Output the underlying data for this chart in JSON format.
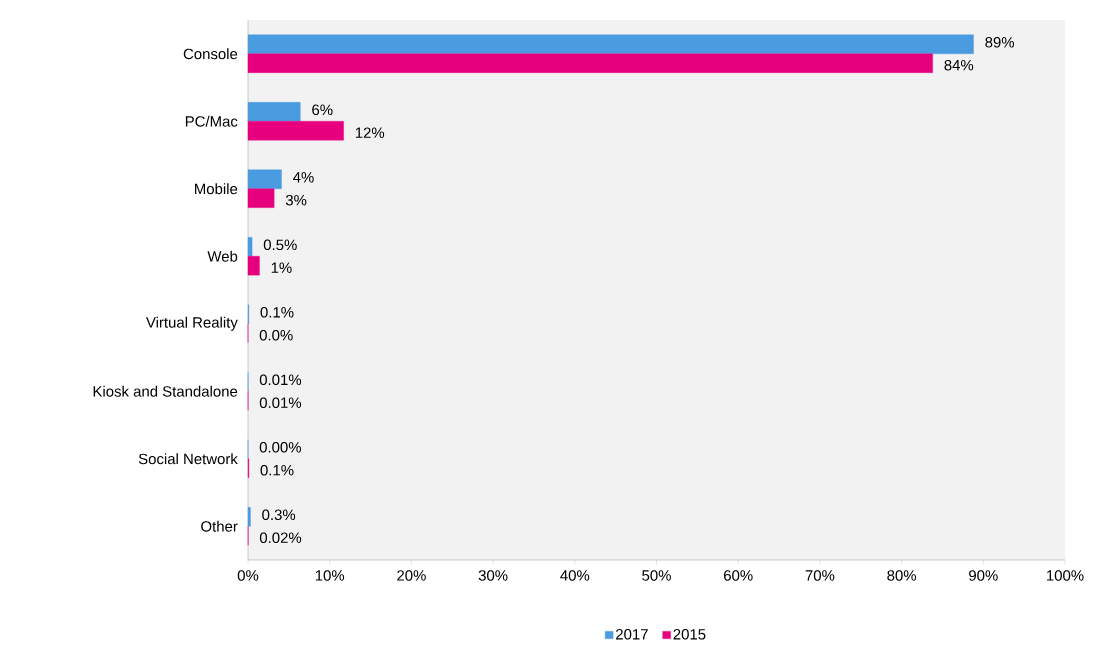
{
  "chart_data": {
    "type": "bar",
    "orientation": "horizontal",
    "categories": [
      "Console",
      "PC/Mac",
      "Mobile",
      "Web",
      "Virtual Reality",
      "Kiosk and Standalone",
      "Social Network",
      "Other"
    ],
    "series": [
      {
        "name": "2017",
        "color": "#4a9be0",
        "values": [
          88.8,
          6.4,
          4.1,
          0.5,
          0.1,
          0.01,
          0.0,
          0.3
        ],
        "value_labels": [
          "89%",
          "6%",
          "4%",
          "0.5%",
          "0.1%",
          "0.01%",
          "0.00%",
          "0.3%"
        ]
      },
      {
        "name": "2015",
        "color": "#e6007e",
        "values": [
          83.8,
          11.7,
          3.2,
          1.4,
          0.0,
          0.01,
          0.1,
          0.02
        ],
        "value_labels": [
          "84%",
          "12%",
          "3%",
          "1%",
          "0.0%",
          "0.01%",
          "0.1%",
          "0.02%"
        ]
      }
    ],
    "xlim": [
      0,
      100
    ],
    "xticks": [
      {
        "value": 0,
        "label": "0%"
      },
      {
        "value": 10,
        "label": "10%"
      },
      {
        "value": 20,
        "label": "20%"
      },
      {
        "value": 30,
        "label": "30%"
      },
      {
        "value": 40,
        "label": "40%"
      },
      {
        "value": 50,
        "label": "50%"
      },
      {
        "value": 60,
        "label": "60%"
      },
      {
        "value": 70,
        "label": "70%"
      },
      {
        "value": 80,
        "label": "80%"
      },
      {
        "value": 90,
        "label": "90%"
      },
      {
        "value": 100,
        "label": "100%"
      }
    ],
    "grid": false,
    "legend": "bottom"
  }
}
